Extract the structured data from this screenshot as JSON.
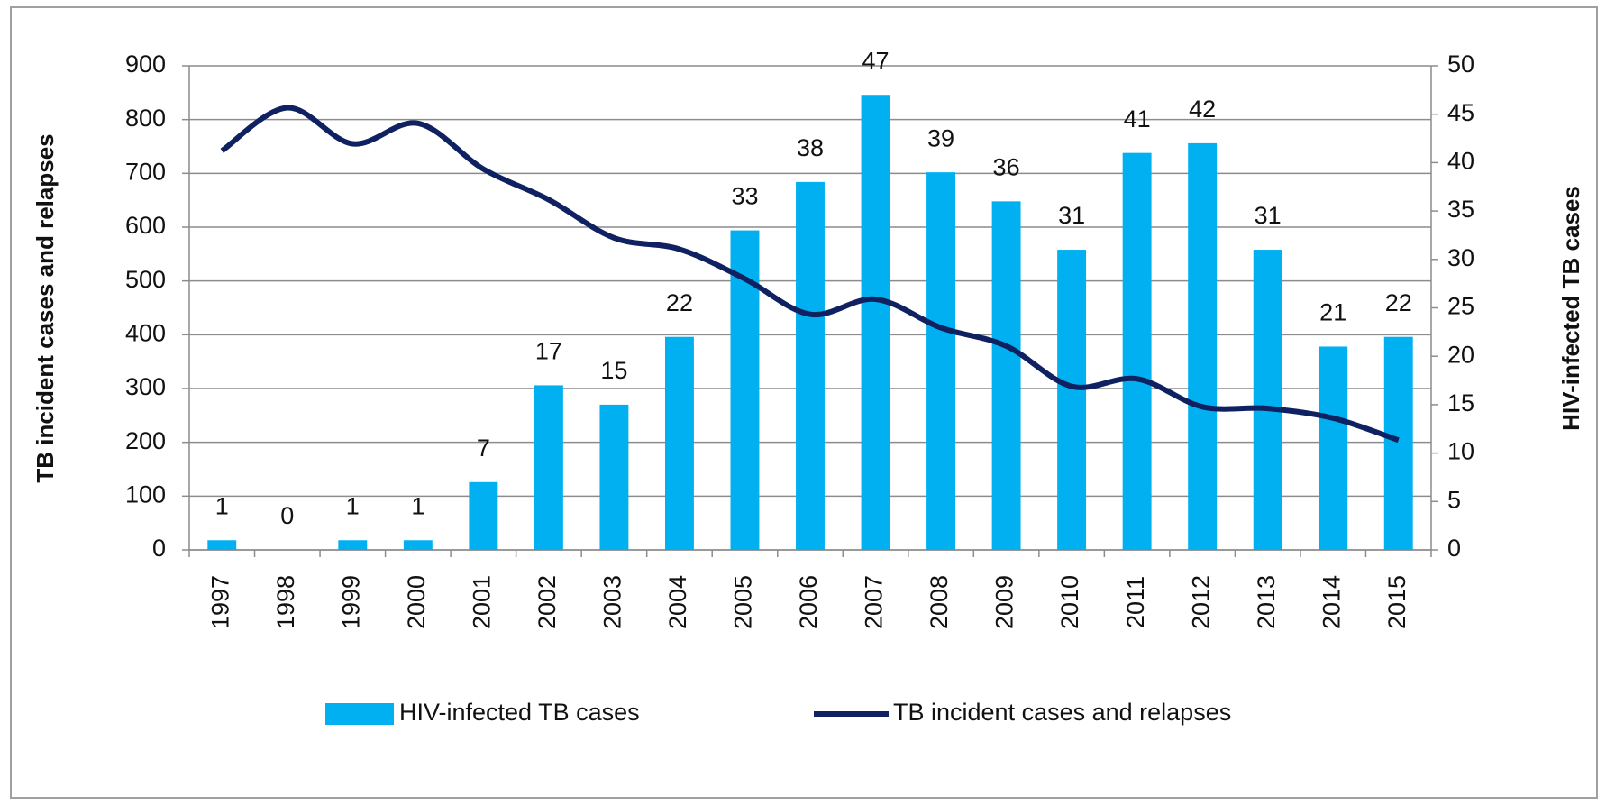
{
  "chart_data": {
    "type": "bar_line",
    "categories": [
      "1997",
      "1998",
      "1999",
      "2000",
      "2001",
      "2002",
      "2003",
      "2004",
      "2005",
      "2006",
      "2007",
      "2008",
      "2009",
      "2010",
      "2011",
      "2012",
      "2013",
      "2014",
      "2015"
    ],
    "series": [
      {
        "name": "HIV-infected TB cases",
        "type": "bar",
        "color": "#00b0f0",
        "axis": "y2",
        "values": [
          1,
          0,
          1,
          1,
          7,
          17,
          15,
          22,
          33,
          38,
          47,
          39,
          36,
          31,
          41,
          42,
          31,
          21,
          22
        ]
      },
      {
        "name": "TB incident cases and relapses",
        "type": "line",
        "color": "#0f2160",
        "axis": "y",
        "values": [
          742,
          822,
          755,
          793,
          708,
          651,
          580,
          559,
          504,
          438,
          466,
          413,
          379,
          304,
          318,
          266,
          263,
          245,
          204
        ]
      }
    ],
    "ylabel": "TB incident cases and relapses",
    "y2label": "HIV-infected TB cases",
    "ylim": [
      0,
      900
    ],
    "yticks": [
      0,
      100,
      200,
      300,
      400,
      500,
      600,
      700,
      800,
      900
    ],
    "y2lim": [
      0,
      50
    ],
    "y2ticks": [
      0,
      5,
      10,
      15,
      20,
      25,
      30,
      35,
      40,
      45,
      50
    ],
    "grid": true,
    "legend": "bottom"
  }
}
